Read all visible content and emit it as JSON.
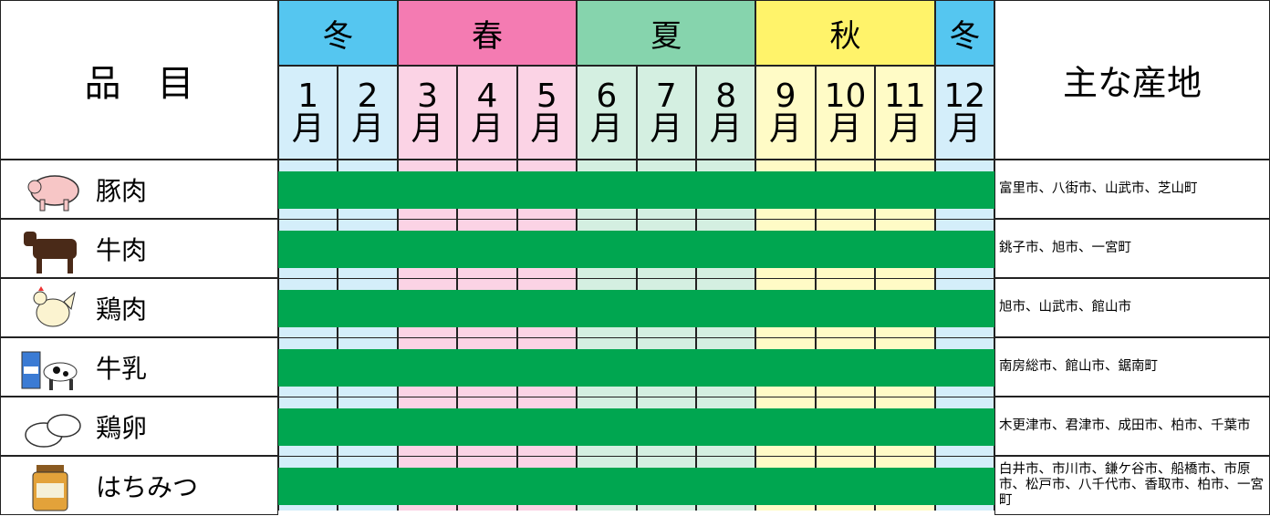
{
  "header": {
    "item_label": "品　目",
    "origin_label": "主な産地"
  },
  "seasons": [
    {
      "label": "冬",
      "months": 2,
      "color": "#55c6f0",
      "light": "#d4eefa"
    },
    {
      "label": "春",
      "months": 3,
      "color": "#f47bb2",
      "light": "#fbd3e5"
    },
    {
      "label": "夏",
      "months": 3,
      "color": "#86d4ad",
      "light": "#d4efe1"
    },
    {
      "label": "秋",
      "months": 3,
      "color": "#fff36a",
      "light": "#fffbc6"
    },
    {
      "label": "冬",
      "months": 1,
      "color": "#55c6f0",
      "light": "#d4eefa"
    }
  ],
  "months": [
    {
      "num": "1",
      "unit": "月"
    },
    {
      "num": "2",
      "unit": "月"
    },
    {
      "num": "3",
      "unit": "月"
    },
    {
      "num": "4",
      "unit": "月"
    },
    {
      "num": "5",
      "unit": "月"
    },
    {
      "num": "6",
      "unit": "月"
    },
    {
      "num": "7",
      "unit": "月"
    },
    {
      "num": "8",
      "unit": "月"
    },
    {
      "num": "9",
      "unit": "月"
    },
    {
      "num": "10",
      "unit": "月"
    },
    {
      "num": "11",
      "unit": "月"
    },
    {
      "num": "12",
      "unit": "月"
    }
  ],
  "bar_color": "#00a650",
  "rows": [
    {
      "name": "豚肉",
      "regions": "富里市、八街市、山武市、芝山町"
    },
    {
      "name": "牛肉",
      "regions": "銚子市、旭市、一宮町"
    },
    {
      "name": "鶏肉",
      "regions": "旭市、山武市、館山市"
    },
    {
      "name": "牛乳",
      "regions": "南房総市、館山市、鋸南町"
    },
    {
      "name": "鶏卵",
      "regions": "木更津市、君津市、成田市、柏市、千葉市"
    },
    {
      "name": "はちみつ",
      "regions": "白井市、市川市、鎌ケ谷市、船橋市、市原市、松戸市、八千代市、香取市、柏市、一宮町"
    }
  ]
}
